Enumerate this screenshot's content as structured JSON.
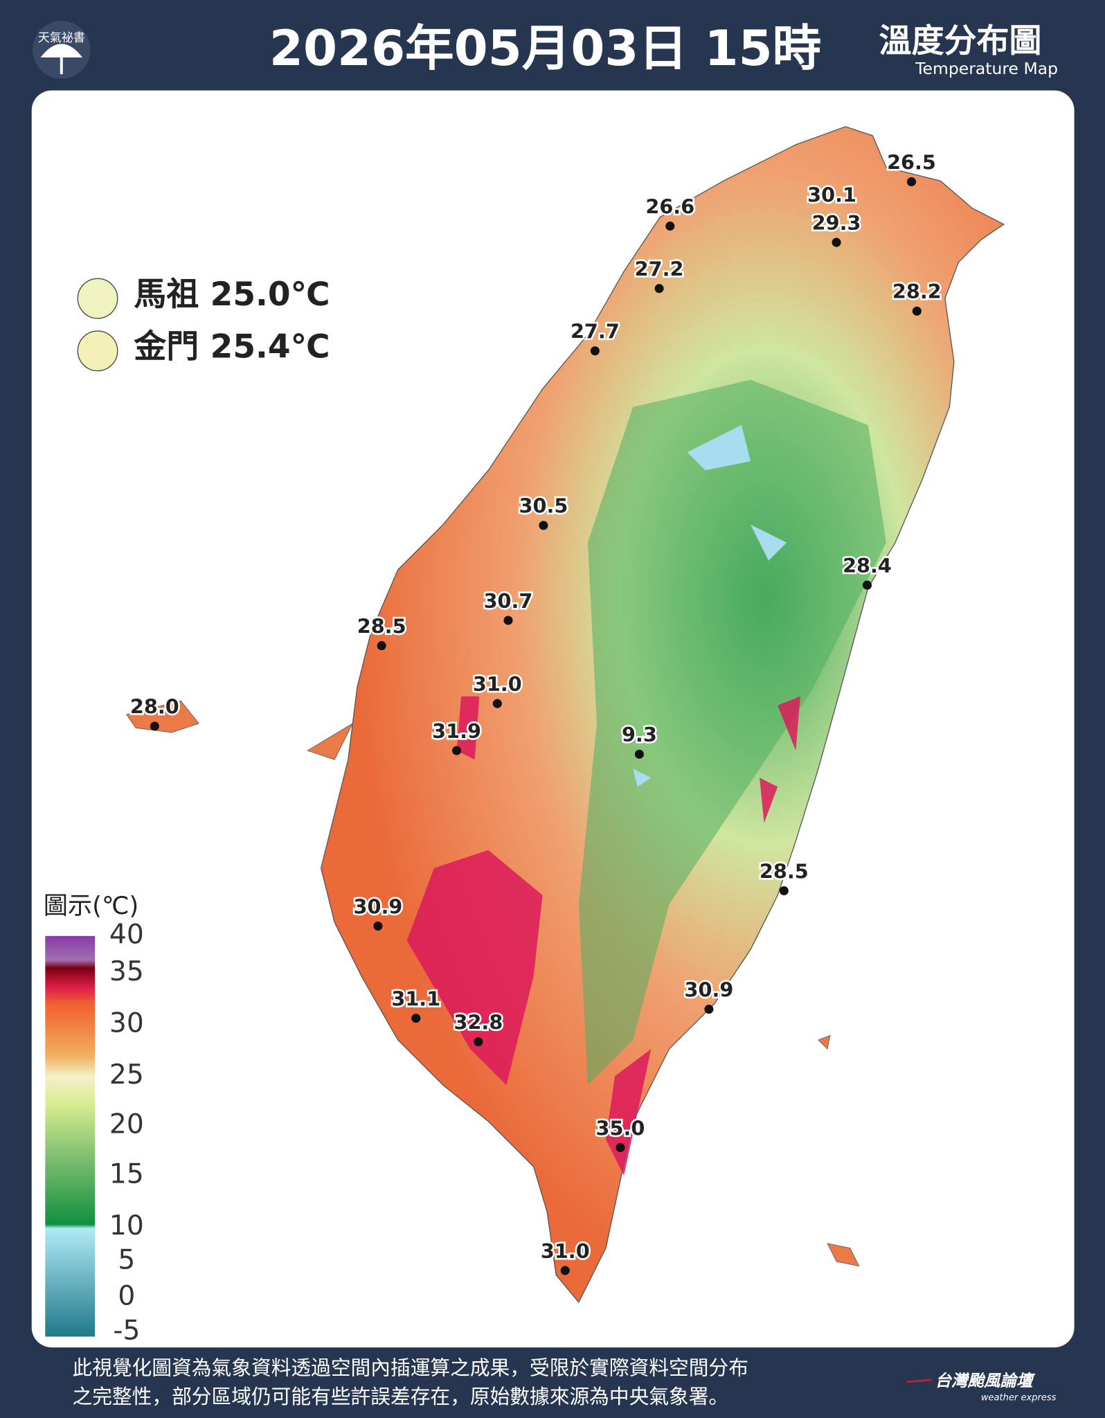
{
  "header": {
    "logo": "天氣祕書",
    "title": "2026年05月03日 15時",
    "map_title": "溫度分布圖",
    "map_subtitle": "Temperature Map"
  },
  "islands": [
    "馬祖 25.0℃",
    "金門 25.4℃"
  ],
  "stations": [
    "26.5",
    "30.1",
    "29.3",
    "26.6",
    "27.2",
    "28.2",
    "27.7",
    "30.5",
    "28.4",
    "30.7",
    "28.5",
    "31.0",
    "28.0",
    "31.9",
    "9.3",
    "28.5",
    "30.9",
    "30.9",
    "31.1",
    "32.8",
    "35.0",
    "31.0"
  ],
  "legend": {
    "title": "圖示(℃)",
    "ticks": [
      "40",
      "35",
      "30",
      "25",
      "20",
      "15",
      "10",
      "5",
      "0",
      "-5"
    ]
  },
  "footer": {
    "lines": [
      "此視覺化圖資為氣象資料透過空間內插運算之成果，受限於實際資料空間分布",
      "之完整性，部分區域仍可能有些許誤差存在，原始數據來源為中央氣象署。"
    ],
    "brand": "台灣颱風論壇",
    "brand_sub": "weather express"
  }
}
